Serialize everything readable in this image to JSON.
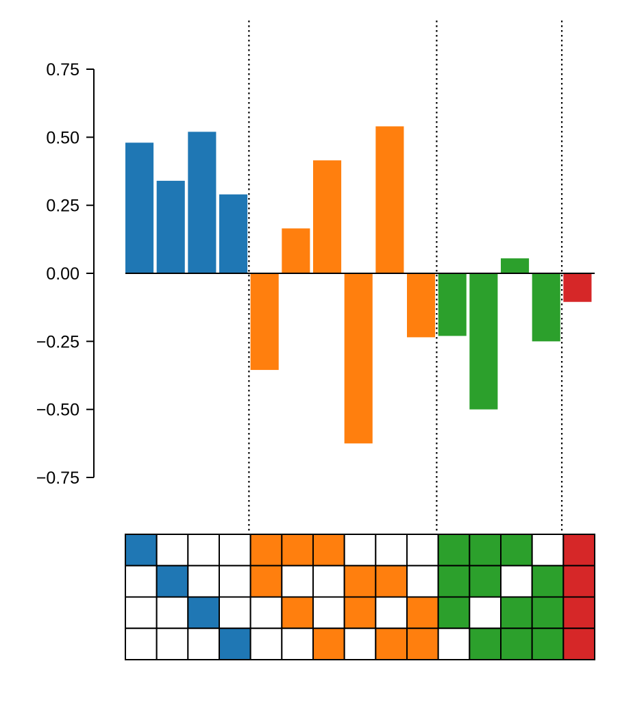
{
  "chart_data": {
    "type": "bar",
    "title": "",
    "xlabel": "",
    "ylabel": "",
    "ylim": [
      -0.75,
      0.75
    ],
    "yticks": [
      {
        "value": 0.75,
        "label": "0.75"
      },
      {
        "value": 0.5,
        "label": "0.50"
      },
      {
        "value": 0.25,
        "label": "0.25"
      },
      {
        "value": 0.0,
        "label": "0.00"
      },
      {
        "value": -0.25,
        "label": "−0.25"
      },
      {
        "value": -0.5,
        "label": "−0.50"
      },
      {
        "value": -0.75,
        "label": "−0.75"
      }
    ],
    "bars": [
      {
        "value": 0.48,
        "group": 1
      },
      {
        "value": 0.34,
        "group": 1
      },
      {
        "value": 0.52,
        "group": 1
      },
      {
        "value": 0.29,
        "group": 1
      },
      {
        "value": -0.355,
        "group": 2
      },
      {
        "value": 0.165,
        "group": 2
      },
      {
        "value": 0.415,
        "group": 2
      },
      {
        "value": -0.625,
        "group": 2
      },
      {
        "value": 0.54,
        "group": 2
      },
      {
        "value": -0.235,
        "group": 2
      },
      {
        "value": -0.23,
        "group": 3
      },
      {
        "value": -0.5,
        "group": 3
      },
      {
        "value": 0.055,
        "group": 3
      },
      {
        "value": -0.25,
        "group": 3
      },
      {
        "value": -0.105,
        "group": 4
      }
    ],
    "group_colors": {
      "1": "#1f77b4",
      "2": "#ff7f0e",
      "3": "#2ca02c",
      "4": "#d62728"
    },
    "group_separators_after_bar": [
      4,
      10,
      14
    ],
    "membership_matrix": [
      [
        1,
        0,
        0,
        0,
        1,
        1,
        1,
        0,
        0,
        0,
        1,
        1,
        1,
        0,
        1
      ],
      [
        0,
        1,
        0,
        0,
        1,
        0,
        0,
        1,
        1,
        0,
        1,
        1,
        0,
        1,
        1
      ],
      [
        0,
        0,
        1,
        0,
        0,
        1,
        0,
        1,
        0,
        1,
        1,
        0,
        1,
        1,
        1
      ],
      [
        0,
        0,
        0,
        1,
        0,
        0,
        1,
        0,
        1,
        1,
        0,
        1,
        1,
        1,
        1
      ]
    ],
    "grid": false,
    "legend": "none"
  }
}
